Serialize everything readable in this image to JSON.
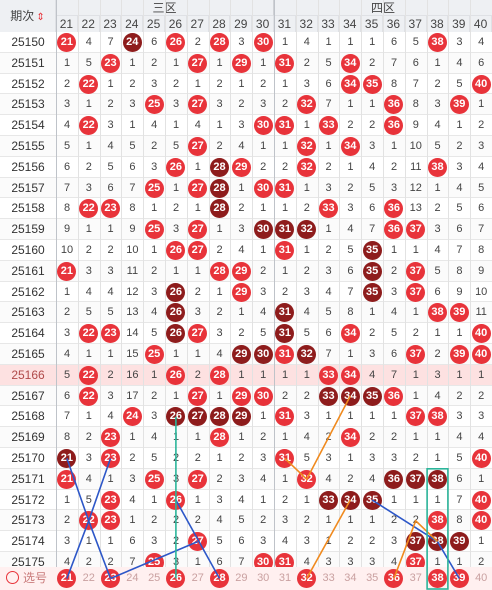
{
  "header": {
    "period_label": "期次",
    "sort_icon": "sort-arrows-icon",
    "zone3_label": "三区",
    "zone4_label": "四区",
    "columns": [
      "21",
      "22",
      "23",
      "24",
      "25",
      "26",
      "27",
      "28",
      "29",
      "30",
      "31",
      "32",
      "33",
      "34",
      "35",
      "36",
      "37",
      "38",
      "39",
      "40"
    ]
  },
  "colors": {
    "ball_red": "#e8333a",
    "ball_dark": "#8e1c1c",
    "highlight_row": "#fde1e1",
    "line_blue": "#2d57c8",
    "line_orange": "#f08a1e",
    "line_green": "#2bb59a"
  },
  "rows": [
    {
      "period": "25150",
      "cells": [
        "21",
        "4",
        "7",
        "24",
        "6",
        "26",
        "2",
        "28",
        "3",
        "30",
        "1",
        "4",
        "1",
        "1",
        "1",
        "6",
        "5",
        "38",
        "3",
        "4"
      ],
      "balls": {
        "21": "r",
        "24": "d",
        "26": "r",
        "28": "r",
        "30": "r",
        "38": "r"
      }
    },
    {
      "period": "25151",
      "cells": [
        "1",
        "5",
        "23",
        "1",
        "2",
        "1",
        "27",
        "1",
        "29",
        "1",
        "31",
        "2",
        "5",
        "34",
        "2",
        "7",
        "6",
        "1",
        "4",
        "6"
      ],
      "balls": {
        "23": "r",
        "27": "r",
        "29": "r",
        "31": "r",
        "34": "r"
      }
    },
    {
      "period": "25152",
      "cells": [
        "2",
        "22",
        "1",
        "2",
        "3",
        "2",
        "1",
        "2",
        "1",
        "2",
        "1",
        "3",
        "6",
        "34",
        "35",
        "8",
        "7",
        "2",
        "5",
        "40"
      ],
      "balls": {
        "22": "r",
        "34": "r",
        "35": "r",
        "40": "r"
      }
    },
    {
      "period": "25153",
      "cells": [
        "3",
        "1",
        "2",
        "3",
        "25",
        "3",
        "27",
        "3",
        "2",
        "3",
        "2",
        "32",
        "7",
        "1",
        "1",
        "36",
        "8",
        "3",
        "39",
        "1"
      ],
      "balls": {
        "25": "r",
        "27": "r",
        "32": "r",
        "36": "r",
        "39": "r"
      }
    },
    {
      "period": "25154",
      "cells": [
        "4",
        "22",
        "3",
        "1",
        "4",
        "1",
        "4",
        "1",
        "3",
        "30",
        "31",
        "1",
        "33",
        "2",
        "2",
        "36",
        "9",
        "4",
        "1",
        "2"
      ],
      "balls": {
        "22": "r",
        "30": "r",
        "31": "r",
        "33": "r",
        "36": "r"
      }
    },
    {
      "period": "25155",
      "cells": [
        "5",
        "1",
        "4",
        "5",
        "2",
        "5",
        "27",
        "2",
        "4",
        "1",
        "1",
        "32",
        "1",
        "34",
        "3",
        "1",
        "10",
        "5",
        "2",
        "3"
      ],
      "balls": {
        "27": "r",
        "32": "r",
        "34": "r"
      }
    },
    {
      "period": "25156",
      "cells": [
        "6",
        "2",
        "5",
        "6",
        "3",
        "26",
        "1",
        "28",
        "29",
        "2",
        "2",
        "32",
        "2",
        "1",
        "4",
        "2",
        "11",
        "38",
        "3",
        "4"
      ],
      "balls": {
        "26": "r",
        "28": "d",
        "29": "r",
        "32": "r",
        "38": "r"
      }
    },
    {
      "period": "25157",
      "cells": [
        "7",
        "3",
        "6",
        "7",
        "25",
        "1",
        "27",
        "28",
        "1",
        "30",
        "31",
        "1",
        "3",
        "2",
        "5",
        "3",
        "12",
        "1",
        "4",
        "5"
      ],
      "balls": {
        "25": "r",
        "27": "r",
        "28": "d",
        "30": "r",
        "31": "r"
      }
    },
    {
      "period": "25158",
      "cells": [
        "8",
        "22",
        "23",
        "8",
        "1",
        "2",
        "1",
        "28",
        "2",
        "1",
        "1",
        "2",
        "33",
        "3",
        "6",
        "36",
        "13",
        "2",
        "5",
        "6"
      ],
      "balls": {
        "22": "r",
        "23": "r",
        "28": "d",
        "33": "r",
        "36": "r"
      }
    },
    {
      "period": "25159",
      "cells": [
        "9",
        "1",
        "1",
        "9",
        "25",
        "3",
        "27",
        "1",
        "3",
        "30",
        "31",
        "32",
        "1",
        "4",
        "7",
        "36",
        "37",
        "3",
        "6",
        "7"
      ],
      "balls": {
        "25": "r",
        "27": "r",
        "30": "d",
        "31": "d",
        "32": "d",
        "36": "r",
        "37": "r"
      }
    },
    {
      "period": "25160",
      "cells": [
        "10",
        "2",
        "2",
        "10",
        "1",
        "26",
        "27",
        "2",
        "4",
        "1",
        "31",
        "1",
        "2",
        "5",
        "35",
        "1",
        "1",
        "4",
        "7",
        "8"
      ],
      "balls": {
        "26": "r",
        "27": "r",
        "31": "r",
        "35": "d"
      }
    },
    {
      "period": "25161",
      "cells": [
        "21",
        "3",
        "3",
        "11",
        "2",
        "1",
        "1",
        "28",
        "29",
        "2",
        "1",
        "2",
        "3",
        "6",
        "35",
        "2",
        "37",
        "5",
        "8",
        "9"
      ],
      "balls": {
        "21": "r",
        "28": "r",
        "29": "r",
        "35": "d",
        "37": "r"
      }
    },
    {
      "period": "25162",
      "cells": [
        "1",
        "4",
        "4",
        "12",
        "3",
        "26",
        "2",
        "1",
        "29",
        "3",
        "2",
        "3",
        "4",
        "7",
        "35",
        "3",
        "37",
        "6",
        "9",
        "10"
      ],
      "balls": {
        "26": "d",
        "29": "r",
        "35": "d",
        "37": "r"
      }
    },
    {
      "period": "25163",
      "cells": [
        "2",
        "5",
        "5",
        "13",
        "4",
        "26",
        "3",
        "2",
        "1",
        "4",
        "31",
        "4",
        "5",
        "8",
        "1",
        "4",
        "1",
        "38",
        "39",
        "11"
      ],
      "balls": {
        "26": "d",
        "31": "d",
        "38": "r",
        "39": "r"
      }
    },
    {
      "period": "25164",
      "cells": [
        "3",
        "22",
        "23",
        "14",
        "5",
        "26",
        "27",
        "3",
        "2",
        "5",
        "31",
        "5",
        "6",
        "34",
        "2",
        "5",
        "2",
        "1",
        "1",
        "40"
      ],
      "balls": {
        "22": "r",
        "23": "r",
        "26": "d",
        "27": "r",
        "31": "d",
        "34": "r",
        "40": "r"
      }
    },
    {
      "period": "25165",
      "cells": [
        "4",
        "1",
        "1",
        "15",
        "25",
        "1",
        "1",
        "4",
        "29",
        "30",
        "31",
        "32",
        "7",
        "1",
        "3",
        "6",
        "37",
        "2",
        "39",
        "40"
      ],
      "balls": {
        "25": "r",
        "29": "d",
        "30": "d",
        "31": "r",
        "32": "d",
        "37": "r",
        "39": "r",
        "40": "r"
      }
    },
    {
      "period": "25166",
      "cells": [
        "5",
        "22",
        "2",
        "16",
        "1",
        "26",
        "2",
        "28",
        "1",
        "1",
        "1",
        "1",
        "33",
        "34",
        "4",
        "7",
        "1",
        "3",
        "1",
        "1"
      ],
      "balls": {
        "22": "r",
        "26": "r",
        "28": "r",
        "33": "r",
        "34": "r"
      },
      "highlight": true
    },
    {
      "period": "25167",
      "cells": [
        "6",
        "22",
        "3",
        "17",
        "2",
        "1",
        "27",
        "1",
        "29",
        "30",
        "2",
        "2",
        "33",
        "34",
        "35",
        "36",
        "1",
        "4",
        "2",
        "2"
      ],
      "balls": {
        "22": "r",
        "27": "r",
        "29": "r",
        "30": "r",
        "33": "d",
        "34": "d",
        "35": "d",
        "36": "r"
      }
    },
    {
      "period": "25168",
      "cells": [
        "7",
        "1",
        "4",
        "24",
        "3",
        "26",
        "27",
        "28",
        "29",
        "1",
        "31",
        "3",
        "1",
        "1",
        "1",
        "1",
        "37",
        "38",
        "3",
        "3"
      ],
      "balls": {
        "24": "r",
        "26": "d",
        "27": "d",
        "28": "d",
        "29": "d",
        "31": "r",
        "37": "r",
        "38": "r"
      }
    },
    {
      "period": "25169",
      "cells": [
        "8",
        "2",
        "23",
        "1",
        "4",
        "1",
        "1",
        "28",
        "1",
        "2",
        "1",
        "4",
        "2",
        "34",
        "2",
        "2",
        "1",
        "1",
        "4",
        "4"
      ],
      "balls": {
        "23": "r",
        "28": "r",
        "34": "r"
      }
    },
    {
      "period": "25170",
      "cells": [
        "21",
        "3",
        "23",
        "2",
        "5",
        "2",
        "2",
        "1",
        "2",
        "3",
        "31",
        "5",
        "3",
        "1",
        "3",
        "3",
        "2",
        "1",
        "5",
        "40"
      ],
      "balls": {
        "21": "d",
        "23": "r",
        "31": "r",
        "40": "r"
      }
    },
    {
      "period": "25171",
      "cells": [
        "21",
        "4",
        "1",
        "3",
        "25",
        "3",
        "27",
        "2",
        "3",
        "4",
        "1",
        "32",
        "4",
        "2",
        "4",
        "36",
        "37",
        "38",
        "6",
        "1"
      ],
      "balls": {
        "21": "r",
        "25": "r",
        "27": "r",
        "32": "r",
        "36": "d",
        "37": "d",
        "38": "d"
      }
    },
    {
      "period": "25172",
      "cells": [
        "1",
        "5",
        "23",
        "4",
        "1",
        "26",
        "1",
        "3",
        "4",
        "1",
        "2",
        "1",
        "33",
        "34",
        "35",
        "1",
        "1",
        "1",
        "7",
        "40"
      ],
      "balls": {
        "23": "r",
        "26": "r",
        "33": "d",
        "34": "d",
        "35": "d",
        "40": "r"
      }
    },
    {
      "period": "25173",
      "cells": [
        "2",
        "22",
        "23",
        "1",
        "2",
        "2",
        "2",
        "4",
        "5",
        "2",
        "3",
        "2",
        "1",
        "1",
        "1",
        "2",
        "2",
        "38",
        "8",
        "40"
      ],
      "balls": {
        "22": "r",
        "23": "r",
        "38": "r",
        "40": "r"
      }
    },
    {
      "period": "25174",
      "cells": [
        "3",
        "1",
        "1",
        "6",
        "3",
        "2",
        "27",
        "5",
        "6",
        "3",
        "4",
        "3",
        "1",
        "2",
        "2",
        "3",
        "37",
        "38",
        "39",
        "1"
      ],
      "balls": {
        "27": "r",
        "37": "d",
        "38": "d",
        "39": "d"
      }
    },
    {
      "period": "25175",
      "cells": [
        "4",
        "2",
        "2",
        "7",
        "25",
        "3",
        "1",
        "6",
        "7",
        "30",
        "31",
        "4",
        "3",
        "3",
        "3",
        "4",
        "37",
        "1",
        "1",
        "2"
      ],
      "balls": {
        "25": "r",
        "30": "r",
        "31": "r",
        "37": "r"
      }
    }
  ],
  "footer": {
    "label": "选号",
    "picks": [
      "21",
      "22",
      "23",
      "24",
      "25",
      "26",
      "27",
      "28",
      "29",
      "30",
      "31",
      "32",
      "33",
      "34",
      "35",
      "36",
      "37",
      "38",
      "39",
      "40"
    ],
    "selected": [
      "21",
      "23",
      "26",
      "28",
      "32",
      "36",
      "38",
      "39"
    ]
  }
}
